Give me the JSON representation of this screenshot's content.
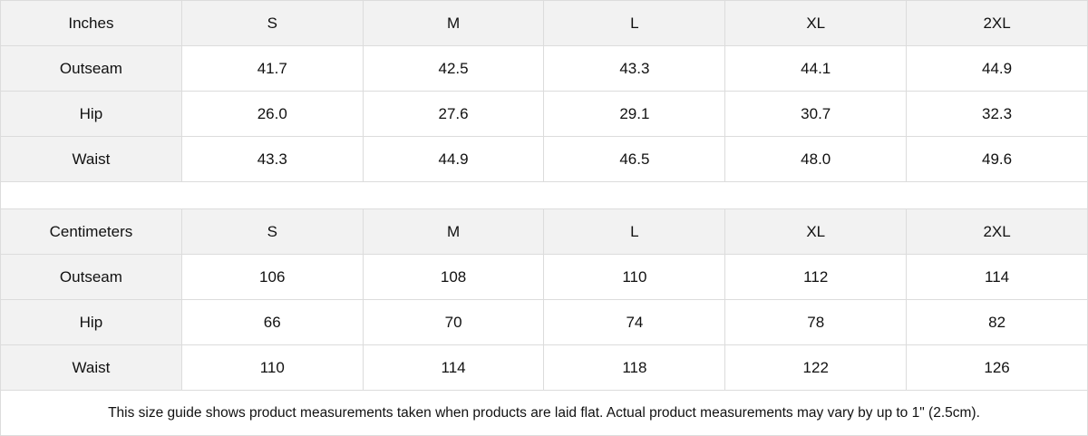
{
  "tables": [
    {
      "unit": "Inches",
      "sizes": [
        "S",
        "M",
        "L",
        "XL",
        "2XL"
      ],
      "rows": [
        {
          "label": "Outseam",
          "values": [
            "41.7",
            "42.5",
            "43.3",
            "44.1",
            "44.9"
          ]
        },
        {
          "label": "Hip",
          "values": [
            "26.0",
            "27.6",
            "29.1",
            "30.7",
            "32.3"
          ]
        },
        {
          "label": "Waist",
          "values": [
            "43.3",
            "44.9",
            "46.5",
            "48.0",
            "49.6"
          ]
        }
      ]
    },
    {
      "unit": "Centimeters",
      "sizes": [
        "S",
        "M",
        "L",
        "XL",
        "2XL"
      ],
      "rows": [
        {
          "label": "Outseam",
          "values": [
            "106",
            "108",
            "110",
            "112",
            "114"
          ]
        },
        {
          "label": "Hip",
          "values": [
            "66",
            "70",
            "74",
            "78",
            "82"
          ]
        },
        {
          "label": "Waist",
          "values": [
            "110",
            "114",
            "118",
            "122",
            "126"
          ]
        }
      ]
    }
  ],
  "note": "This size guide shows product measurements taken when products are laid flat.  Actual product measurements may vary by up to 1\" (2.5cm)."
}
